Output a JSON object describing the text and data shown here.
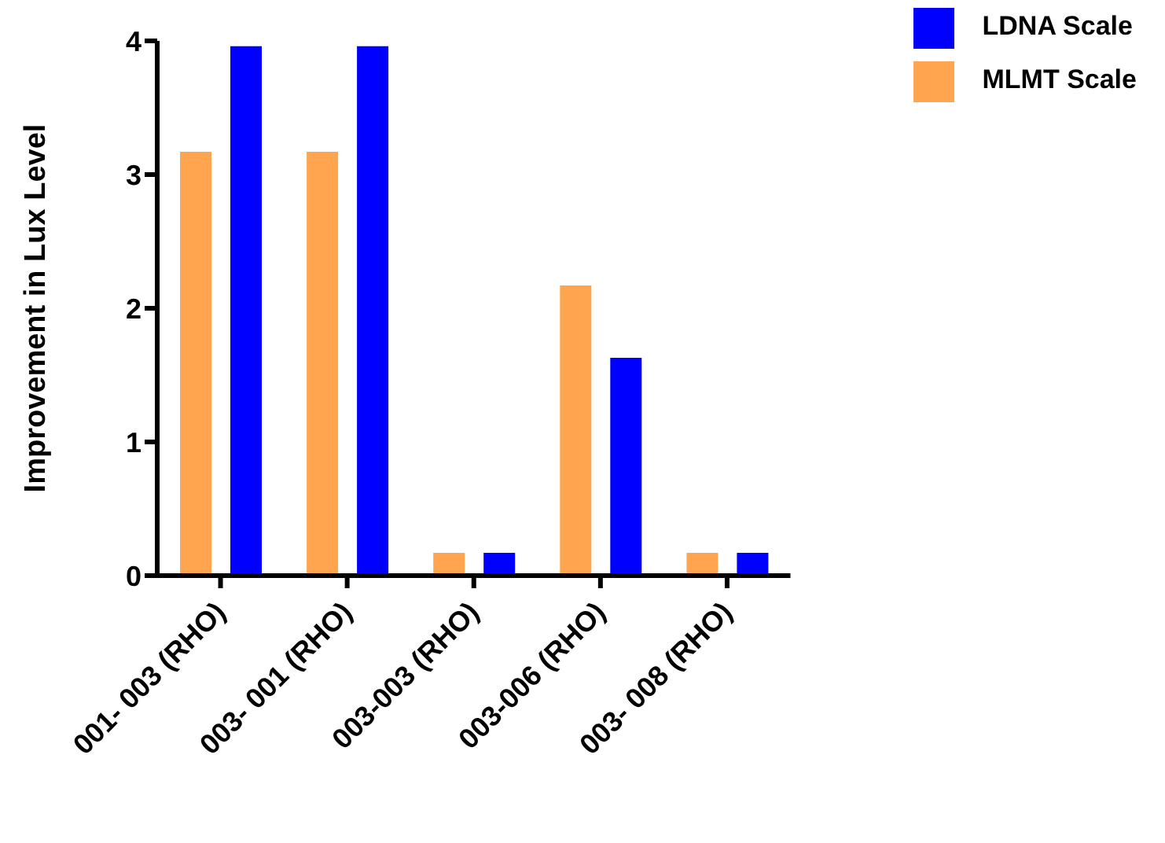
{
  "chart_data": {
    "type": "bar",
    "ylabel": "Improvement in Lux Level",
    "categories": [
      "001- 003 (RHO)",
      "003- 001 (RHO)",
      "003-003 (RHO)",
      "003-006 (RHO)",
      "003- 008 (RHO)"
    ],
    "series": [
      {
        "name": "MLMT Scale",
        "color": "#ffa54f",
        "values": [
          3.17,
          3.17,
          0.17,
          2.17,
          0.17
        ]
      },
      {
        "name": "LDNA Scale",
        "color": "#0000ff",
        "values": [
          3.96,
          3.96,
          0.17,
          1.63,
          0.17
        ]
      }
    ],
    "ylim": [
      0,
      4
    ],
    "yticks": [
      0,
      1,
      2,
      3,
      4
    ],
    "grid": false,
    "legend": "top right"
  }
}
